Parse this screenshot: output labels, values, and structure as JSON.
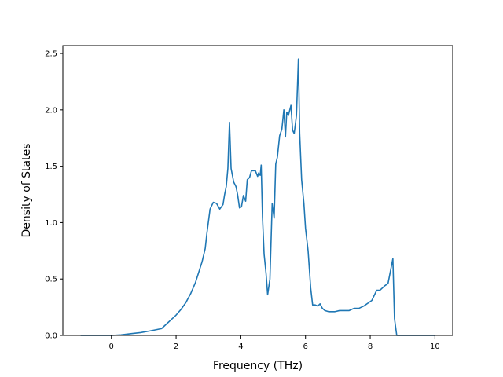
{
  "chart_data": {
    "type": "line",
    "title": "",
    "xlabel": "Frequency (THz)",
    "ylabel": "Density of States",
    "xlim": [
      -1.5,
      10.55
    ],
    "ylim": [
      0,
      2.57
    ],
    "xticks": [
      0,
      2,
      4,
      6,
      8,
      10
    ],
    "xtick_labels": [
      "0",
      "2",
      "4",
      "6",
      "8",
      "10"
    ],
    "yticks": [
      0.0,
      0.5,
      1.0,
      1.5,
      2.0,
      2.5
    ],
    "ytick_labels": [
      "0.0",
      "0.5",
      "1.0",
      "1.5",
      "2.0",
      "2.5"
    ],
    "grid": false,
    "colors": {
      "line": "#1f77b4"
    },
    "series": [
      {
        "x": [
          -0.95,
          -0.5,
          0.0,
          0.3,
          0.6,
          0.9,
          1.2,
          1.55,
          1.7,
          1.85,
          2.0,
          2.15,
          2.3,
          2.45,
          2.6,
          2.7,
          2.8,
          2.9,
          2.95,
          3.05,
          3.15,
          3.25,
          3.35,
          3.45,
          3.5,
          3.55,
          3.6,
          3.65,
          3.7,
          3.78,
          3.85,
          3.9,
          3.96,
          4.02,
          4.08,
          4.15,
          4.2,
          4.27,
          4.33,
          4.45,
          4.52,
          4.55,
          4.6,
          4.63,
          4.67,
          4.72,
          4.78,
          4.83,
          4.9,
          4.97,
          5.03,
          5.08,
          5.13,
          5.2,
          5.27,
          5.33,
          5.38,
          5.42,
          5.47,
          5.55,
          5.6,
          5.65,
          5.72,
          5.78,
          5.82,
          5.88,
          5.95,
          6.0,
          6.08,
          6.16,
          6.22,
          6.3,
          6.38,
          6.45,
          6.52,
          6.6,
          6.72,
          6.8,
          6.9,
          7.05,
          7.2,
          7.35,
          7.5,
          7.65,
          7.8,
          7.95,
          8.05,
          8.2,
          8.3,
          8.45,
          8.55,
          8.7,
          8.75,
          8.82,
          8.9,
          8.97,
          9.03,
          9.08,
          9.2,
          9.6,
          10.0
        ],
        "y": [
          0.0,
          0.0,
          0.0,
          0.005,
          0.015,
          0.025,
          0.04,
          0.06,
          0.1,
          0.14,
          0.18,
          0.23,
          0.29,
          0.37,
          0.47,
          0.56,
          0.65,
          0.77,
          0.9,
          1.12,
          1.18,
          1.17,
          1.12,
          1.16,
          1.25,
          1.32,
          1.48,
          1.89,
          1.48,
          1.36,
          1.32,
          1.25,
          1.13,
          1.14,
          1.24,
          1.19,
          1.38,
          1.4,
          1.46,
          1.46,
          1.41,
          1.44,
          1.42,
          1.51,
          1.05,
          0.72,
          0.55,
          0.36,
          0.5,
          1.17,
          1.04,
          1.52,
          1.58,
          1.77,
          1.83,
          2.0,
          1.76,
          1.98,
          1.95,
          2.04,
          1.82,
          1.79,
          1.95,
          2.45,
          1.79,
          1.38,
          1.17,
          0.95,
          0.75,
          0.42,
          0.27,
          0.27,
          0.26,
          0.28,
          0.24,
          0.22,
          0.21,
          0.21,
          0.21,
          0.22,
          0.22,
          0.22,
          0.24,
          0.24,
          0.26,
          0.29,
          0.31,
          0.4,
          0.4,
          0.44,
          0.46,
          0.68,
          0.15,
          0.0,
          0.0,
          0.0,
          0.0,
          0.0,
          0.0,
          0.0,
          0.0
        ]
      }
    ]
  }
}
